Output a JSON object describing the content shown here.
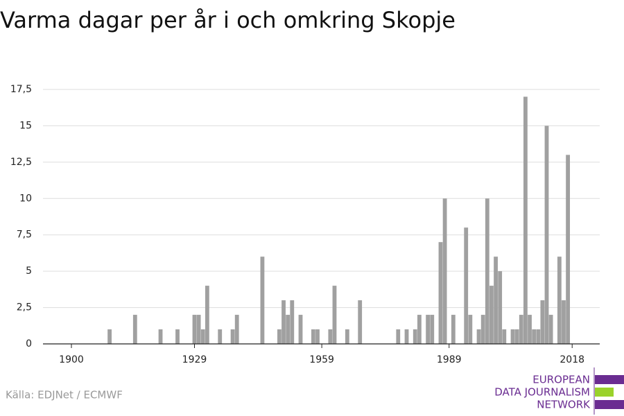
{
  "chart_data": {
    "type": "bar",
    "title": "Varma dagar per år i och omkring Skopje",
    "source": "Källa: EDJNet / ECMWF",
    "logo": [
      "EUROPEAN",
      "DATA JOURNALISM",
      "NETWORK"
    ],
    "x": [
      1909,
      1915,
      1921,
      1925,
      1929,
      1930,
      1931,
      1932,
      1935,
      1938,
      1939,
      1945,
      1949,
      1950,
      1951,
      1952,
      1954,
      1957,
      1958,
      1961,
      1962,
      1965,
      1968,
      1977,
      1979,
      1981,
      1982,
      1984,
      1985,
      1987,
      1988,
      1990,
      1993,
      1994,
      1996,
      1997,
      1998,
      1999,
      2000,
      2001,
      2002,
      2004,
      2005,
      2006,
      2007,
      2008,
      2009,
      2010,
      2011,
      2012,
      2013,
      2015,
      2016,
      2017
    ],
    "values": [
      1,
      2,
      1,
      1,
      2,
      2,
      1,
      4,
      1,
      1,
      2,
      6,
      1,
      3,
      2,
      3,
      2,
      1,
      1,
      1,
      4,
      1,
      3,
      1,
      1,
      1,
      2,
      2,
      2,
      7,
      10,
      2,
      8,
      2,
      1,
      2,
      10,
      4,
      6,
      5,
      1,
      1,
      1,
      2,
      17,
      2,
      1,
      1,
      3,
      15,
      2,
      6,
      3,
      13
    ],
    "color": "#a0a0a0",
    "xlim": [
      1893.3,
      2024.5
    ],
    "xticks": [
      1900,
      1929,
      1959,
      1989,
      2018
    ],
    "ylim": [
      0,
      17.5
    ],
    "yticks": [
      0,
      {
        "value": 2.5,
        "label": "2,5"
      },
      5,
      {
        "value": 7.5,
        "label": "7,5"
      },
      10,
      {
        "value": 12.5,
        "label": "12,5"
      },
      15,
      {
        "value": 17.5,
        "label": "17,5"
      }
    ],
    "grid": true
  }
}
